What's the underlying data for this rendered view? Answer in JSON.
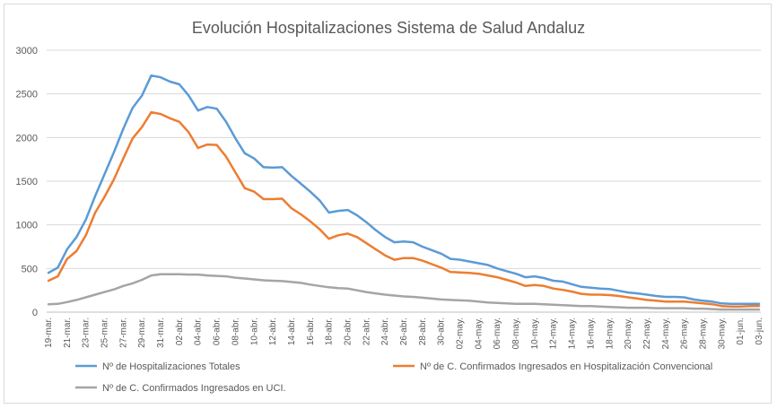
{
  "chart_data": {
    "type": "line",
    "title": "Evolución Hospitalizaciones Sistema de Salud Andaluz",
    "xlabel": "",
    "ylabel": "",
    "ylim": [
      0,
      3000
    ],
    "yticks": [
      0,
      500,
      1000,
      1500,
      2000,
      2500,
      3000
    ],
    "grid": true,
    "legend_position": "bottom",
    "x": [
      "19-mar.",
      "20-mar.",
      "21-mar.",
      "22-mar.",
      "23-mar.",
      "24-mar.",
      "25-mar.",
      "26-mar.",
      "27-mar.",
      "28-mar.",
      "29-mar.",
      "30-mar.",
      "31-mar.",
      "01-abr.",
      "02-abr.",
      "03-abr.",
      "04-abr.",
      "05-abr.",
      "06-abr.",
      "07-abr.",
      "08-abr.",
      "09-abr.",
      "10-abr.",
      "11-abr.",
      "12-abr.",
      "13-abr.",
      "14-abr.",
      "15-abr.",
      "16-abr.",
      "17-abr.",
      "18-abr.",
      "19-abr.",
      "20-abr.",
      "21-abr.",
      "22-abr.",
      "23-abr.",
      "24-abr.",
      "25-abr.",
      "26-abr.",
      "27-abr.",
      "28-abr.",
      "29-abr.",
      "30-abr.",
      "01-may.",
      "02-may.",
      "03-may.",
      "04-may.",
      "05-may.",
      "06-may.",
      "07-may.",
      "08-may.",
      "09-may.",
      "10-may.",
      "11-may.",
      "12-may.",
      "13-may.",
      "14-may.",
      "15-may.",
      "16-may.",
      "17-may.",
      "18-may.",
      "19-may.",
      "20-may.",
      "21-may.",
      "22-may.",
      "23-may.",
      "24-may.",
      "25-may.",
      "26-may.",
      "27-may.",
      "28-may.",
      "29-may.",
      "30-may.",
      "31-may.",
      "01-jun.",
      "02-jun.",
      "03-jun."
    ],
    "x_tick_labels": [
      "19-mar.",
      "21-mar.",
      "23-mar.",
      "25-mar.",
      "27-mar.",
      "29-mar.",
      "31-mar.",
      "02-abr.",
      "04-abr.",
      "06-abr.",
      "08-abr.",
      "10-abr.",
      "12-abr.",
      "14-abr.",
      "16-abr.",
      "18-abr.",
      "20-abr.",
      "22-abr.",
      "24-abr.",
      "26-abr.",
      "28-abr.",
      "30-abr.",
      "02-may.",
      "04-may.",
      "06-may.",
      "08-may.",
      "10-may.",
      "12-may.",
      "14-may.",
      "16-may.",
      "18-may.",
      "20-may.",
      "22-may.",
      "24-may.",
      "26-may.",
      "28-may.",
      "30-may.",
      "01-jun.",
      "03-jun."
    ],
    "series": [
      {
        "name": "Nº de Hospitalizaciones Totales",
        "color": "#5b9bd5",
        "values": [
          450,
          510,
          720,
          860,
          1060,
          1330,
          1580,
          1830,
          2100,
          2340,
          2480,
          2710,
          2690,
          2640,
          2610,
          2480,
          2310,
          2350,
          2330,
          2180,
          1990,
          1820,
          1760,
          1660,
          1655,
          1660,
          1560,
          1470,
          1380,
          1280,
          1140,
          1160,
          1170,
          1110,
          1030,
          940,
          860,
          800,
          810,
          800,
          750,
          710,
          670,
          610,
          600,
          580,
          560,
          540,
          500,
          470,
          440,
          400,
          410,
          390,
          360,
          350,
          320,
          290,
          280,
          270,
          265,
          245,
          225,
          215,
          200,
          185,
          175,
          175,
          170,
          145,
          130,
          120,
          100,
          95,
          95,
          95,
          95
        ]
      },
      {
        "name": "Nº de C. Confirmados Ingresados en Hospitalización Convencional",
        "color": "#ed7d31",
        "values": [
          360,
          410,
          610,
          700,
          880,
          1140,
          1320,
          1520,
          1760,
          1990,
          2120,
          2290,
          2270,
          2220,
          2180,
          2060,
          1880,
          1920,
          1915,
          1780,
          1600,
          1420,
          1380,
          1295,
          1295,
          1300,
          1190,
          1120,
          1040,
          950,
          840,
          880,
          900,
          860,
          790,
          720,
          650,
          600,
          620,
          620,
          590,
          550,
          510,
          460,
          455,
          450,
          440,
          420,
          400,
          370,
          340,
          300,
          310,
          300,
          270,
          255,
          235,
          210,
          200,
          200,
          195,
          185,
          170,
          155,
          140,
          130,
          120,
          120,
          120,
          110,
          100,
          90,
          70,
          65,
          65,
          70,
          70
        ]
      },
      {
        "name": "Nº de C. Confirmados Ingresados en UCI.",
        "color": "#a5a5a5",
        "values": [
          90,
          95,
          115,
          140,
          170,
          200,
          230,
          260,
          300,
          330,
          370,
          420,
          435,
          435,
          435,
          430,
          430,
          420,
          415,
          410,
          395,
          385,
          375,
          365,
          360,
          355,
          345,
          335,
          315,
          300,
          285,
          275,
          270,
          250,
          230,
          215,
          200,
          190,
          180,
          175,
          165,
          155,
          145,
          140,
          135,
          130,
          120,
          110,
          105,
          100,
          95,
          95,
          95,
          90,
          85,
          80,
          75,
          70,
          70,
          65,
          60,
          55,
          50,
          50,
          50,
          45,
          45,
          45,
          45,
          40,
          40,
          35,
          30,
          30,
          30,
          30,
          30
        ]
      }
    ]
  }
}
